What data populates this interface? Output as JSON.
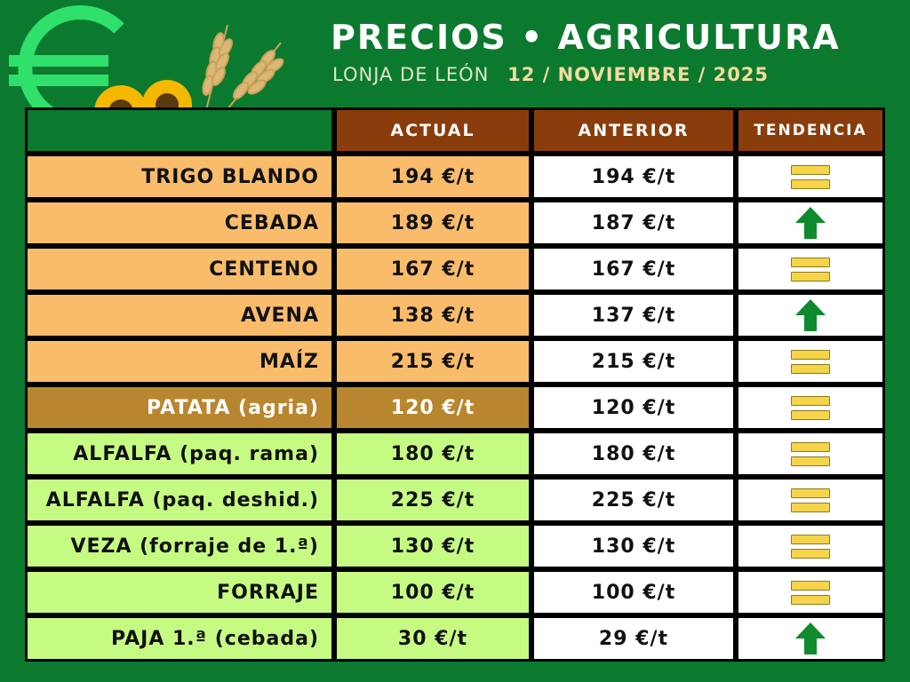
{
  "header": {
    "title": "PRECIOS • AGRICULTURA",
    "organization": "LONJA DE LEÓN",
    "date": "12 / NOVIEMBRE / 2025"
  },
  "colors": {
    "background": "#0b7a2f",
    "header_cells": "#8a3d0c",
    "cereal_rows": "#f9bc6b",
    "tuber_rows": "#b8862f",
    "forage_rows": "#c6fb83",
    "arrow_up": "#0f8a2c",
    "equal_bars": "#f6d44a"
  },
  "columns": {
    "current": "ACTUAL",
    "previous": "ANTERIOR",
    "trend": "TENDENCIA"
  },
  "rows": [
    {
      "name": "TRIGO BLANDO",
      "current": "194 €/t",
      "previous": "194 €/t",
      "trend": "equal"
    },
    {
      "name": "CEBADA",
      "current": "189 €/t",
      "previous": "187 €/t",
      "trend": "up"
    },
    {
      "name": "CENTENO",
      "current": "167 €/t",
      "previous": "167 €/t",
      "trend": "equal"
    },
    {
      "name": "AVENA",
      "current": "138 €/t",
      "previous": "137 €/t",
      "trend": "up"
    },
    {
      "name": "MAÍZ",
      "current": "215 €/t",
      "previous": "215 €/t",
      "trend": "equal"
    },
    {
      "name": "PATATA (agria)",
      "current": "120 €/t",
      "previous": "120 €/t",
      "trend": "equal"
    },
    {
      "name": "ALFALFA (paq. rama)",
      "current": "180 €/t",
      "previous": "180 €/t",
      "trend": "equal"
    },
    {
      "name": "ALFALFA (paq. deshid.)",
      "current": "225 €/t",
      "previous": "225 €/t",
      "trend": "equal"
    },
    {
      "name": "VEZA (forraje de 1.ª)",
      "current": "130 €/t",
      "previous": "130 €/t",
      "trend": "equal"
    },
    {
      "name": "FORRAJE",
      "current": "100 €/t",
      "previous": "100 €/t",
      "trend": "equal"
    },
    {
      "name": "PAJA 1.ª (cebada)",
      "current": "30 €/t",
      "previous": "29 €/t",
      "trend": "up"
    }
  ],
  "icons": {
    "logo": "euro-icon",
    "decoration": "sunflower-wheat-icon",
    "trend_up": "arrow-up-icon",
    "trend_equal": "equal-icon"
  }
}
